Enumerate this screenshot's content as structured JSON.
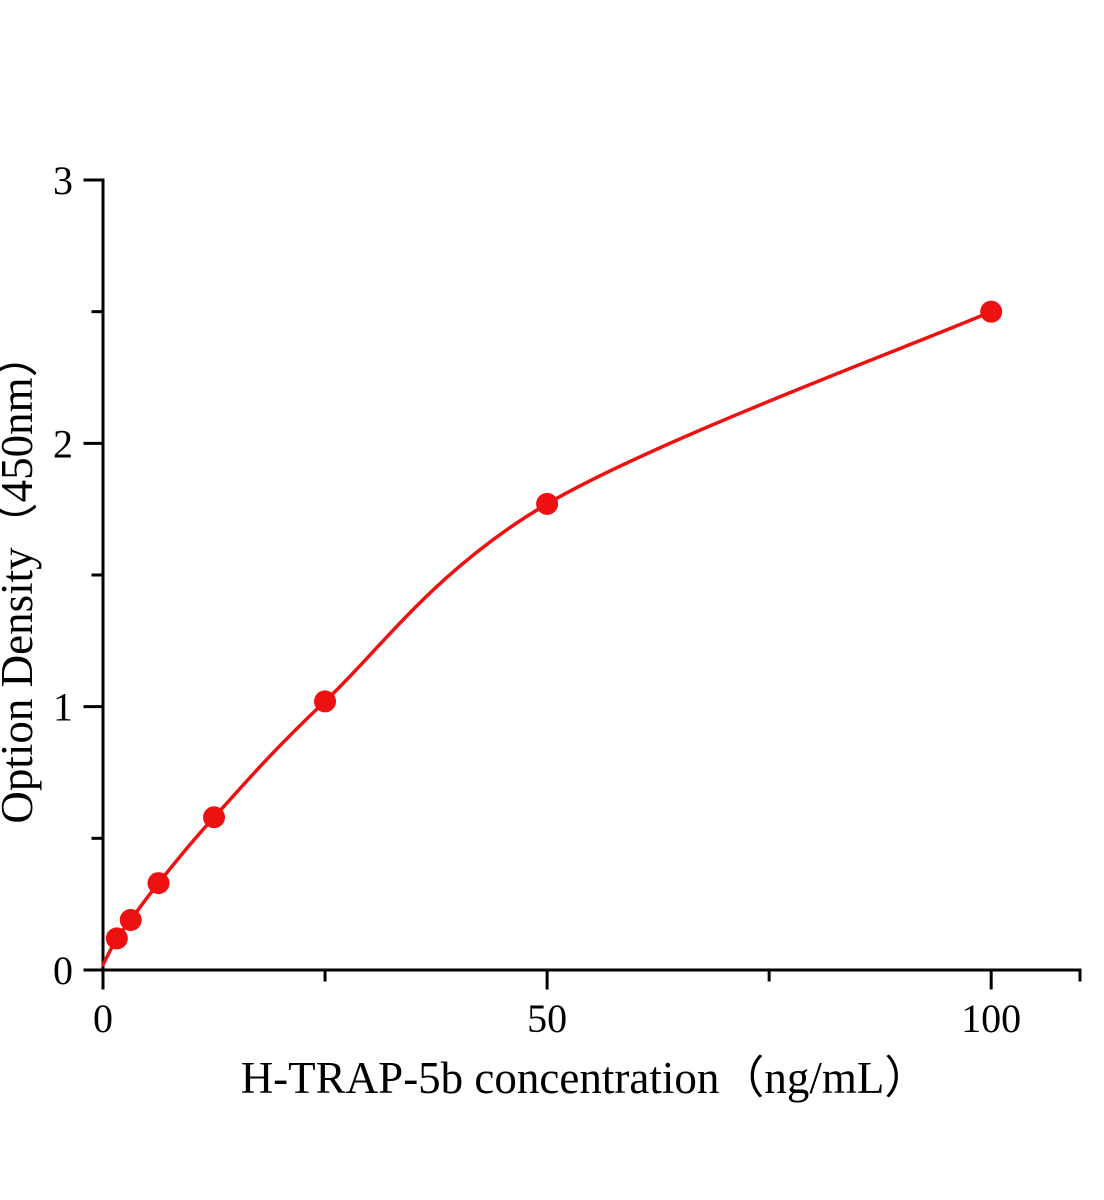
{
  "page": {
    "background": "#ffffff",
    "axis_color": "#000000"
  },
  "chart_data": {
    "type": "scatter",
    "title": "",
    "xlabel": "H-TRAP-5b concentration（ng/mL）",
    "ylabel": "Option Density（450nm）",
    "xlim": [
      0,
      110
    ],
    "ylim": [
      0,
      3
    ],
    "grid": false,
    "legend": false,
    "x_major_ticks": [
      0,
      50,
      100
    ],
    "x_major_tick_labels": [
      "0",
      "50",
      "100"
    ],
    "x_minor_ticks": [
      25,
      75,
      110
    ],
    "y_major_ticks": [
      0,
      1,
      2,
      3
    ],
    "y_major_tick_labels": [
      "0",
      "1",
      "2",
      "3"
    ],
    "y_minor_ticks": [
      0.5,
      1.5,
      2.5
    ],
    "series": [
      {
        "marker": "circle",
        "color": "#ee1111",
        "fit_curve_start": {
          "x": 0,
          "y": 0.02
        },
        "points": [
          {
            "x": 1.56,
            "y": 0.12
          },
          {
            "x": 3.12,
            "y": 0.19
          },
          {
            "x": 6.25,
            "y": 0.33
          },
          {
            "x": 12.5,
            "y": 0.58
          },
          {
            "x": 25,
            "y": 1.02
          },
          {
            "x": 50,
            "y": 1.77
          },
          {
            "x": 100,
            "y": 2.5
          }
        ]
      }
    ]
  }
}
